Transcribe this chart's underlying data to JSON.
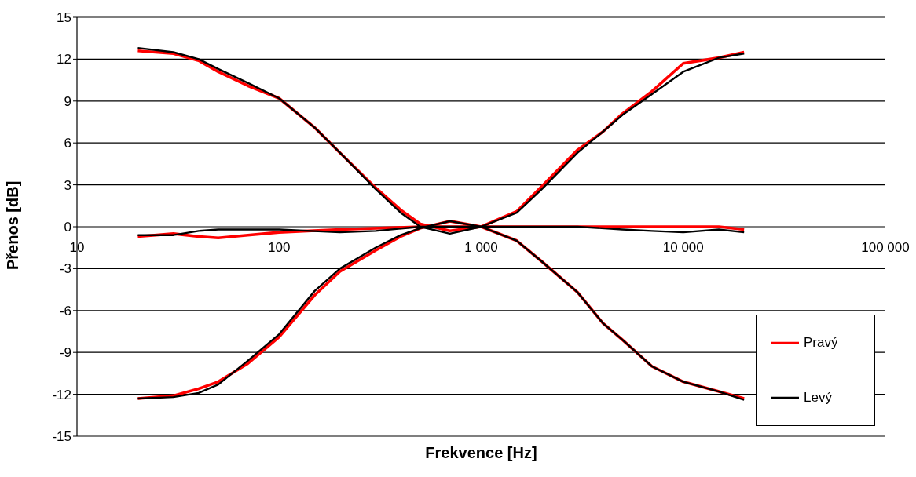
{
  "chart_data": {
    "type": "line",
    "xlabel": "Frekvence [Hz]",
    "ylabel": "Přenos [dB]",
    "log": "x",
    "xlim": [
      10,
      100000
    ],
    "xticks": [
      10,
      100,
      {
        "value": 1000,
        "label": "1 000"
      },
      {
        "value": 10000,
        "label": "10 000"
      },
      {
        "value": 100000,
        "label": "100 000"
      }
    ],
    "ylim": [
      -15,
      15
    ],
    "yticks": [
      -15,
      -12,
      -9,
      -6,
      -3,
      0,
      3,
      6,
      9,
      12,
      15
    ],
    "grid": "y",
    "legend": "bottom right",
    "marker": "none",
    "line_style": "solid",
    "series": [
      {
        "name": "Pravý",
        "color": "#ff0000",
        "x": [
          20,
          30,
          40,
          50,
          70,
          100,
          150,
          200,
          300,
          400,
          500,
          700,
          1000,
          1500,
          2000,
          3000,
          4000,
          5000,
          7000,
          10000,
          15000,
          20000
        ],
        "values": [
          12.6,
          12.4,
          11.9,
          11.1,
          10.1,
          9.2,
          7.1,
          5.3,
          2.8,
          1.2,
          0.2,
          -0.3,
          0,
          -1.0,
          -2.5,
          -4.7,
          -6.9,
          -8.1,
          -10.0,
          -11.1,
          -11.8,
          -12.3
        ]
      },
      {
        "color": "#ff0000",
        "x": [
          20,
          30,
          40,
          50,
          70,
          100,
          150,
          200,
          300,
          400,
          500,
          700,
          1000,
          1500,
          2000,
          3000,
          4000,
          5000,
          7000,
          10000,
          15000,
          20000
        ],
        "values": [
          -12.3,
          -12.1,
          -11.6,
          -11.1,
          -9.8,
          -7.9,
          -4.9,
          -3.2,
          -1.7,
          -0.7,
          -0.1,
          0.4,
          0,
          1.1,
          2.9,
          5.5,
          6.8,
          8.1,
          9.7,
          11.7,
          12.1,
          12.5
        ]
      },
      {
        "color": "#ff0000",
        "x": [
          20,
          30,
          40,
          50,
          70,
          100,
          200,
          500,
          1000,
          3000,
          10000,
          15000,
          20000
        ],
        "values": [
          -0.7,
          -0.5,
          -0.7,
          -0.8,
          -0.6,
          -0.4,
          -0.2,
          0,
          0,
          0,
          0,
          0,
          -0.2
        ]
      },
      {
        "name": "Levý",
        "color": "#000000",
        "x": [
          20,
          30,
          40,
          50,
          70,
          100,
          150,
          200,
          300,
          400,
          500,
          700,
          1000,
          1500,
          2000,
          3000,
          4000,
          5000,
          7000,
          10000,
          15000,
          20000
        ],
        "values": [
          12.8,
          12.5,
          12.0,
          11.3,
          10.3,
          9.2,
          7.1,
          5.3,
          2.7,
          1.0,
          0,
          -0.5,
          0,
          -1.0,
          -2.5,
          -4.7,
          -6.9,
          -8.1,
          -10.0,
          -11.1,
          -11.8,
          -12.4
        ]
      },
      {
        "color": "#000000",
        "x": [
          20,
          30,
          40,
          50,
          70,
          100,
          150,
          200,
          300,
          400,
          500,
          700,
          1000,
          1500,
          2000,
          3000,
          4000,
          5000,
          7000,
          10000,
          15000,
          20000
        ],
        "values": [
          -12.3,
          -12.2,
          -11.9,
          -11.3,
          -9.6,
          -7.7,
          -4.6,
          -3.0,
          -1.5,
          -0.6,
          -0.1,
          0.4,
          0,
          1.0,
          2.7,
          5.3,
          6.8,
          8.0,
          9.5,
          11.1,
          12.1,
          12.4
        ]
      },
      {
        "color": "#000000",
        "x": [
          20,
          30,
          40,
          50,
          70,
          100,
          200,
          300,
          500,
          1000,
          3000,
          5000,
          7000,
          10000,
          15000,
          20000
        ],
        "values": [
          -0.6,
          -0.6,
          -0.3,
          -0.2,
          -0.2,
          -0.2,
          -0.4,
          -0.3,
          0,
          0,
          0,
          -0.2,
          -0.3,
          -0.4,
          -0.2,
          -0.4
        ]
      }
    ]
  }
}
